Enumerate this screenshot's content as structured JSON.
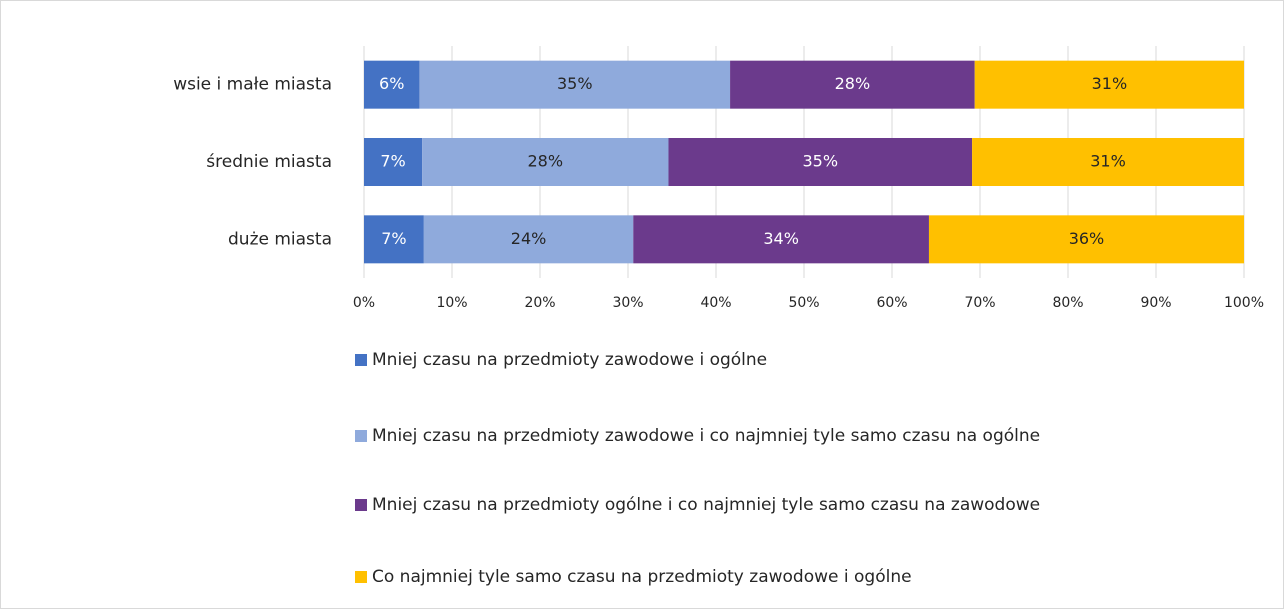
{
  "chart_data": {
    "type": "stacked_bar_horizontal",
    "categories": [
      "wsie i małe miasta",
      "średnie miasta",
      "duże miasta"
    ],
    "series": [
      {
        "name": "Mniej czasu na przedmioty zawodowe i ogólne",
        "color": "#4472c4",
        "label_color": "#ffffff",
        "values": [
          6.3,
          6.6,
          6.8
        ],
        "value_labels": [
          "6%",
          "7%",
          "7%"
        ]
      },
      {
        "name": "Mniej czasu na przedmioty zawodowe i co najmniej tyle samo czasu na ogólne",
        "color": "#8faadc",
        "label_color": "#262626",
        "values": [
          35.3,
          28.0,
          23.8
        ],
        "value_labels": [
          "35%",
          "28%",
          "24%"
        ]
      },
      {
        "name": "Mniej czasu na przedmioty ogólne i co najmniej tyle samo czasu na zawodowe",
        "color": "#6b3a8c",
        "label_color": "#ffffff",
        "values": [
          27.8,
          34.5,
          33.6
        ],
        "value_labels": [
          "28%",
          "35%",
          "34%"
        ]
      },
      {
        "name": "Co najmniej tyle samo czasu na przedmioty zawodowe i ogólne",
        "color": "#ffc000",
        "label_color": "#262626",
        "values": [
          30.6,
          30.9,
          35.8
        ],
        "value_labels": [
          "31%",
          "31%",
          "36%"
        ]
      }
    ],
    "xlim": [
      0,
      100
    ],
    "xticks": [
      {
        "value": 0,
        "label": "0%"
      },
      {
        "value": 10,
        "label": "10%"
      },
      {
        "value": 20,
        "label": "20%"
      },
      {
        "value": 30,
        "label": "30%"
      },
      {
        "value": 40,
        "label": "40%"
      },
      {
        "value": 50,
        "label": "50%"
      },
      {
        "value": 60,
        "label": "60%"
      },
      {
        "value": 70,
        "label": "70%"
      },
      {
        "value": 80,
        "label": "80%"
      },
      {
        "value": 90,
        "label": "90%"
      },
      {
        "value": 100,
        "label": "100%"
      }
    ],
    "grid": true,
    "legend": "bottom"
  }
}
